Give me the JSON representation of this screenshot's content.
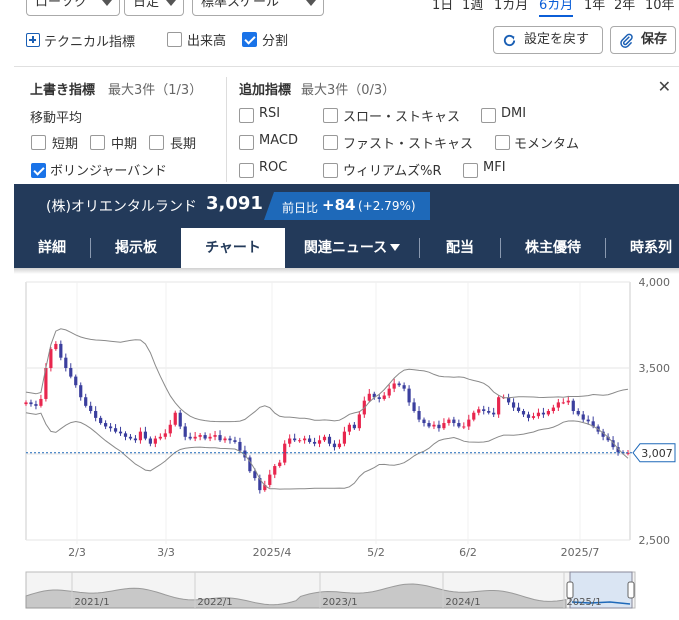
{
  "controls": {
    "chart_type": "ローソク",
    "interval": "日足",
    "scale": "標準スケール",
    "periods": [
      "1日",
      "1週",
      "1カ月",
      "6カ月",
      "1年",
      "2年",
      "10年"
    ],
    "active_period": "6カ月",
    "technical_label": "テクニカル指標",
    "volume_label": "出来高",
    "volume_checked": false,
    "split_label": "分割",
    "split_checked": true,
    "reset_label": "設定を戻す",
    "save_label": "保存"
  },
  "indicator_panel": {
    "overlay_title": "上書き指標",
    "overlay_limit": "最大3件（1/3）",
    "moving_average_label": "移動平均",
    "ma_short": "短期",
    "ma_mid": "中期",
    "ma_long": "長期",
    "bollinger": "ボリンジャーバンド",
    "added_title": "追加指標",
    "added_limit": "最大3件（0/3）",
    "rsi": "RSI",
    "slow_stoch": "スロー・ストキャス",
    "dmi": "DMI",
    "macd": "MACD",
    "fast_stoch": "ファスト・ストキャス",
    "momentum": "モメンタム",
    "roc": "ROC",
    "williams": "ウィリアムズ%R",
    "mfi": "MFI"
  },
  "stock": {
    "name": "(株)オリエンタルランド",
    "price": "3,091",
    "change_label": "前日比",
    "change": "+84",
    "change_pct": "(+2.79%)"
  },
  "tabs": [
    "詳細",
    "掲示板",
    "チャート",
    "関連ニュース",
    "配当",
    "株主優待",
    "時系列"
  ],
  "active_tab": "チャート",
  "chart_data": {
    "type": "candlestick",
    "y_ticks": [
      "4,000",
      "3,500",
      "3,000",
      "2,500"
    ],
    "ylim": [
      2500,
      4000
    ],
    "x_ticks": [
      "2/3",
      "3/3",
      "2025/4",
      "5/2",
      "6/2",
      "2025/7"
    ],
    "last_price_label": "3,007",
    "last_price": 3007,
    "bollinger_bands": true,
    "navigator_labels": [
      "2021/1",
      "2022/1",
      "2023/1",
      "2024/1",
      "2025/1"
    ],
    "closes": [
      3300,
      3290,
      3280,
      3320,
      3500,
      3610,
      3640,
      3560,
      3500,
      3450,
      3400,
      3330,
      3280,
      3250,
      3210,
      3180,
      3160,
      3150,
      3130,
      3120,
      3100,
      3090,
      3080,
      3130,
      3090,
      3060,
      3090,
      3100,
      3120,
      3170,
      3240,
      3160,
      3100,
      3090,
      3100,
      3110,
      3090,
      3100,
      3110,
      3080,
      3090,
      3080,
      3070,
      3020,
      2980,
      2900,
      2860,
      2790,
      2820,
      2880,
      2930,
      2950,
      3060,
      3090,
      3080,
      3080,
      3090,
      3070,
      3060,
      3080,
      3100,
      3060,
      3040,
      3060,
      3130,
      3170,
      3150,
      3230,
      3310,
      3350,
      3330,
      3320,
      3340,
      3380,
      3410,
      3400,
      3380,
      3300,
      3250,
      3200,
      3180,
      3160,
      3170,
      3150,
      3180,
      3200,
      3180,
      3160,
      3160,
      3200,
      3240,
      3260,
      3250,
      3240,
      3230,
      3330,
      3330,
      3300,
      3270,
      3250,
      3230,
      3210,
      3220,
      3240,
      3230,
      3250,
      3270,
      3300,
      3300,
      3310,
      3250,
      3230,
      3200,
      3190,
      3160,
      3130,
      3100,
      3080,
      3040,
      3010,
      3007,
      3007
    ]
  },
  "colors": {
    "header_bg": "#233a5a",
    "change_bg": "#1e69b9",
    "up_candle": "#e8264e",
    "down_candle": "#3b3f9e",
    "band": "#8a8a8a",
    "last_price": "#1e69b9"
  }
}
